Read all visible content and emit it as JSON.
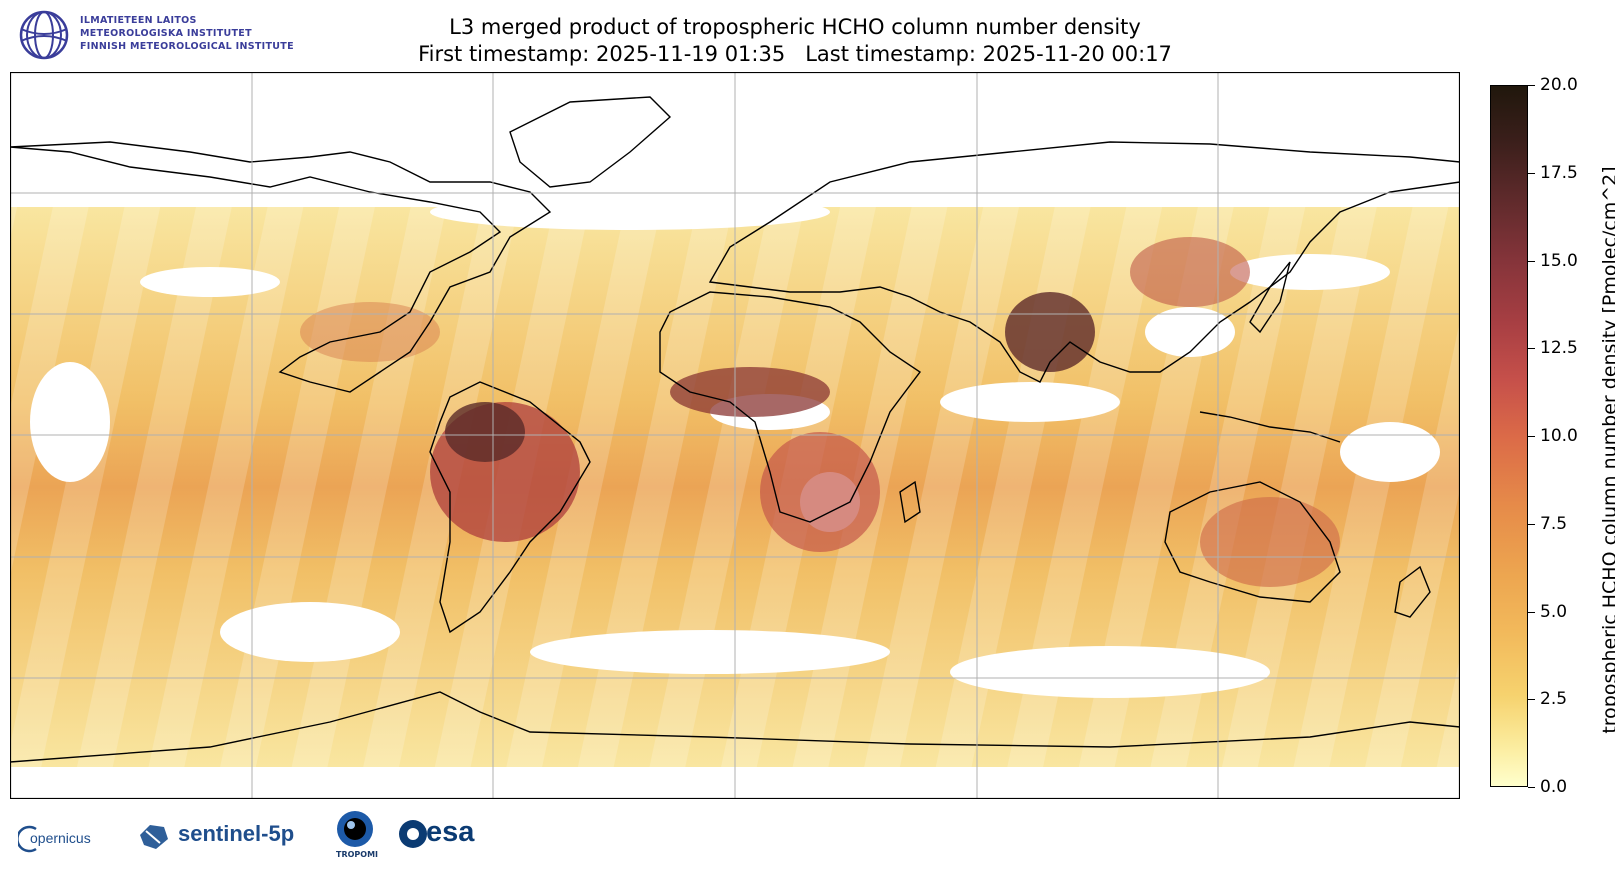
{
  "header": {
    "title_line1": "L3 merged product of tropospheric HCHO column number density",
    "title_line2": "First timestamp: 2025-11-19 01:35   Last timestamp: 2025-11-20 00:17"
  },
  "institute_logo": {
    "line1": "ILMATIETEEN LAITOS",
    "line2": "METEOROLOGISKA INSTITUTET",
    "line3": "FINNISH METEOROLOGICAL INSTITUTE",
    "color": "#3a3d9a"
  },
  "colorbar": {
    "label": "tropospheric HCHO column number density [Pmolec/cm^2]",
    "ticks": [
      "0.0",
      "2.5",
      "5.0",
      "7.5",
      "10.0",
      "12.5",
      "15.0",
      "17.5",
      "20.0"
    ],
    "range": [
      0,
      20
    ]
  },
  "map": {
    "projection": "plate-carree",
    "gridlines": true,
    "lon_range": [
      -180,
      180
    ],
    "lat_range": [
      -90,
      90
    ]
  },
  "footer_logos": {
    "copernicus": "opernicus",
    "sentinel": "sentinel-5p",
    "tropomi": "TROPOMI",
    "esa": "esa"
  }
}
